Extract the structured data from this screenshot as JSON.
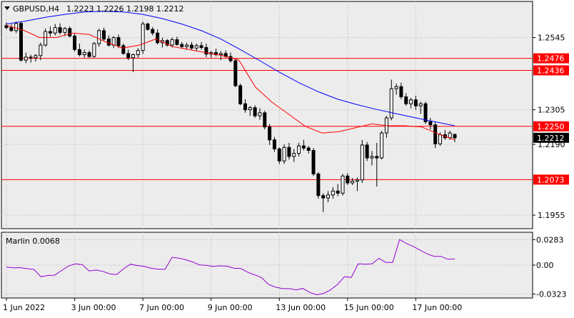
{
  "header": {
    "symbol_timeframe": "GBPUSD,H4",
    "ohlc": "1.2223 1.2226 1.2198 1.2212"
  },
  "price_axis": {
    "ticks": [
      1.2545,
      1.2305,
      1.219,
      1.1955
    ],
    "tick_labels": [
      "1.2545",
      "1.2305",
      "1.2190",
      "1.1955"
    ]
  },
  "levels": [
    {
      "price": 1.2476,
      "label": "1.2476"
    },
    {
      "price": 1.2436,
      "label": "1.2436"
    },
    {
      "price": 1.225,
      "label": "1.2250"
    },
    {
      "price": 1.2073,
      "label": "1.2073"
    }
  ],
  "current_price": {
    "price": 1.2212,
    "label": "1.2212"
  },
  "indicator": {
    "label": "Marlin 0.0068",
    "ticks": [
      0.0283,
      0.0,
      -0.0323
    ],
    "tick_labels": [
      "0.0283",
      "0.00",
      "-0.0323"
    ]
  },
  "time_axis": {
    "labels": [
      "1 Jun 2022",
      "3 Jun 00:00",
      "7 Jun 00:00",
      "9 Jun 00:00",
      "13 Jun 00:00",
      "15 Jun 00:00",
      "17 Jun 00:00"
    ]
  },
  "colors": {
    "background": "#ffffff",
    "plot_background": "#ececec",
    "grid": "#c8c8c8",
    "level_line": "#ff0000",
    "level_label_bg": "#ff0000",
    "current_label_bg": "#000000",
    "ma_slow": "#0000ff",
    "ma_fast": "#ff0000",
    "indicator_line": "#9400d3",
    "bull_candle": "#ffffff",
    "bear_candle": "#000000"
  },
  "chart_data": [
    {
      "type": "candlestick",
      "title": "GBPUSD,H4",
      "ylim": [
        1.191,
        1.2665
      ],
      "candles": [
        [
          1.2585,
          1.2595,
          1.2572,
          1.2578
        ],
        [
          1.2578,
          1.259,
          1.2565,
          1.2568
        ],
        [
          1.2568,
          1.2598,
          1.256,
          1.2592
        ],
        [
          1.2592,
          1.2598,
          1.2465,
          1.247
        ],
        [
          1.247,
          1.2495,
          1.246,
          1.248
        ],
        [
          1.248,
          1.2488,
          1.2462,
          1.2478
        ],
        [
          1.2478,
          1.249,
          1.2465,
          1.2485
        ],
        [
          1.2485,
          1.2528,
          1.247,
          1.252
        ],
        [
          1.252,
          1.2575,
          1.2515,
          1.2565
        ],
        [
          1.2565,
          1.2582,
          1.2548,
          1.256
        ],
        [
          1.256,
          1.259,
          1.2552,
          1.2578
        ],
        [
          1.2578,
          1.2592,
          1.2555,
          1.2562
        ],
        [
          1.2562,
          1.258,
          1.255,
          1.2575
        ],
        [
          1.2575,
          1.2582,
          1.2545,
          1.255
        ],
        [
          1.255,
          1.256,
          1.2498,
          1.2505
        ],
        [
          1.2505,
          1.2525,
          1.2482,
          1.2488
        ],
        [
          1.2488,
          1.2505,
          1.2478,
          1.2495
        ],
        [
          1.2495,
          1.2502,
          1.2478,
          1.2482
        ],
        [
          1.2482,
          1.253,
          1.2478,
          1.2525
        ],
        [
          1.2525,
          1.2575,
          1.2515,
          1.2568
        ],
        [
          1.2568,
          1.2578,
          1.2535,
          1.254
        ],
        [
          1.254,
          1.2552,
          1.2515,
          1.252
        ],
        [
          1.252,
          1.255,
          1.251,
          1.2545
        ],
        [
          1.2545,
          1.2555,
          1.251,
          1.2518
        ],
        [
          1.2518,
          1.2525,
          1.2488,
          1.2492
        ],
        [
          1.2492,
          1.2505,
          1.247,
          1.2478
        ],
        [
          1.2478,
          1.2492,
          1.243,
          1.2488
        ],
        [
          1.2488,
          1.251,
          1.2478,
          1.2502
        ],
        [
          1.2502,
          1.2598,
          1.249,
          1.259
        ],
        [
          1.259,
          1.2595,
          1.2568,
          1.2572
        ],
        [
          1.2572,
          1.258,
          1.2552,
          1.256
        ],
        [
          1.256,
          1.2572,
          1.2522,
          1.2528
        ],
        [
          1.2528,
          1.2545,
          1.2512,
          1.2535
        ],
        [
          1.2535,
          1.254,
          1.2515,
          1.252
        ],
        [
          1.252,
          1.2545,
          1.2512,
          1.2538
        ],
        [
          1.2538,
          1.2548,
          1.2518,
          1.2522
        ],
        [
          1.2522,
          1.253,
          1.2508,
          1.2515
        ],
        [
          1.2515,
          1.2528,
          1.2505,
          1.252
        ],
        [
          1.252,
          1.253,
          1.2505,
          1.251
        ],
        [
          1.251,
          1.2525,
          1.25,
          1.2518
        ],
        [
          1.2518,
          1.253,
          1.2505,
          1.2512
        ],
        [
          1.2512,
          1.2525,
          1.248,
          1.249
        ],
        [
          1.249,
          1.25,
          1.2478,
          1.2495
        ],
        [
          1.2495,
          1.2508,
          1.2482,
          1.2488
        ],
        [
          1.2488,
          1.25,
          1.247,
          1.2492
        ],
        [
          1.2492,
          1.2502,
          1.2478,
          1.2482
        ],
        [
          1.2482,
          1.2495,
          1.2462,
          1.2468
        ],
        [
          1.2468,
          1.2472,
          1.238,
          1.2385
        ],
        [
          1.2385,
          1.2392,
          1.232,
          1.2325
        ],
        [
          1.2325,
          1.234,
          1.2295,
          1.2305
        ],
        [
          1.2305,
          1.2318,
          1.2285,
          1.2312
        ],
        [
          1.2312,
          1.232,
          1.2278,
          1.2285
        ],
        [
          1.2285,
          1.231,
          1.2272,
          1.2295
        ],
        [
          1.2295,
          1.2302,
          1.224,
          1.2248
        ],
        [
          1.2248,
          1.2258,
          1.2188,
          1.2205
        ],
        [
          1.2205,
          1.2215,
          1.2165,
          1.2175
        ],
        [
          1.2175,
          1.218,
          1.2125,
          1.2135
        ],
        [
          1.2135,
          1.219,
          1.2125,
          1.218
        ],
        [
          1.218,
          1.2195,
          1.214,
          1.215
        ],
        [
          1.215,
          1.2175,
          1.2132,
          1.216
        ],
        [
          1.216,
          1.2195,
          1.215,
          1.2185
        ],
        [
          1.2185,
          1.2205,
          1.217,
          1.2178
        ],
        [
          1.2178,
          1.2185,
          1.216,
          1.217
        ],
        [
          1.217,
          1.2178,
          1.2085,
          1.2092
        ],
        [
          1.2092,
          1.2098,
          1.201,
          1.202
        ],
        [
          1.202,
          1.2028,
          1.1965,
          1.2012
        ],
        [
          1.2012,
          1.2035,
          1.1998,
          1.2022
        ],
        [
          1.2022,
          1.2048,
          1.201,
          1.2035
        ],
        [
          1.2035,
          1.2058,
          1.2018,
          1.2028
        ],
        [
          1.2028,
          1.2092,
          1.202,
          1.2085
        ],
        [
          1.2085,
          1.2095,
          1.2055,
          1.2062
        ],
        [
          1.2062,
          1.2078,
          1.2055,
          1.2068
        ],
        [
          1.2068,
          1.208,
          1.2035,
          1.2072
        ],
        [
          1.2072,
          1.2205,
          1.2062,
          1.2188
        ],
        [
          1.2188,
          1.2198,
          1.2135,
          1.2145
        ],
        [
          1.2145,
          1.2168,
          1.212,
          1.215
        ],
        [
          1.215,
          1.2195,
          1.205,
          1.2145
        ],
        [
          1.2145,
          1.2235,
          1.214,
          1.2228
        ],
        [
          1.2228,
          1.2285,
          1.2212,
          1.2278
        ],
        [
          1.2278,
          1.2405,
          1.227,
          1.2375
        ],
        [
          1.2375,
          1.2392,
          1.2355,
          1.2382
        ],
        [
          1.2382,
          1.2395,
          1.234,
          1.2348
        ],
        [
          1.2348,
          1.236,
          1.2318,
          1.2325
        ],
        [
          1.2325,
          1.2345,
          1.231,
          1.2338
        ],
        [
          1.2338,
          1.2352,
          1.2305,
          1.2318
        ],
        [
          1.2318,
          1.2332,
          1.2292,
          1.2325
        ],
        [
          1.2325,
          1.2332,
          1.2258,
          1.2265
        ],
        [
          1.2265,
          1.2278,
          1.224,
          1.2255
        ],
        [
          1.2255,
          1.2265,
          1.2178,
          1.2192
        ],
        [
          1.2192,
          1.223,
          1.2185,
          1.2222
        ],
        [
          1.2222,
          1.2238,
          1.2205,
          1.2212
        ],
        [
          1.2212,
          1.2235,
          1.2205,
          1.2228
        ],
        [
          1.2223,
          1.2226,
          1.2198,
          1.2212
        ]
      ],
      "series": [
        {
          "values": [
            1.259,
            1.26,
            1.2612,
            1.2622,
            1.263,
            1.2632,
            1.263,
            1.2622,
            1.2608,
            1.259,
            1.2568,
            1.254,
            1.2505,
            1.2468,
            1.243,
            1.2395,
            1.2365,
            1.234,
            1.2322,
            1.2306,
            1.2292,
            1.2278,
            1.2265,
            1.2252
          ]
        },
        {
          "values": [
            1.2585,
            1.257,
            1.2545,
            1.2545,
            1.256,
            1.2555,
            1.253,
            1.251,
            1.252,
            1.254,
            1.2515,
            1.2505,
            1.2495,
            1.2485,
            1.247,
            1.238,
            1.233,
            1.229,
            1.225,
            1.2228,
            1.2232,
            1.2245,
            1.2258,
            1.2252,
            1.2252,
            1.2248,
            1.2225,
            1.2205
          ]
        }
      ]
    },
    {
      "type": "line",
      "title": "Marlin 0.0068",
      "ylim": [
        -0.0366,
        0.0366
      ],
      "series": [
        {
          "values": [
            -0.0022,
            -0.003,
            -0.0028,
            -0.004,
            -0.0048,
            -0.013,
            -0.0115,
            -0.0112,
            -0.006,
            -0.001,
            0.0015,
            0.0005,
            -0.0065,
            -0.0055,
            -0.007,
            -0.0098,
            -0.0105,
            -0.004,
            0.001,
            -0.0005,
            -0.0015,
            -0.0035,
            -0.0045,
            -0.0045,
            0.0085,
            0.0078,
            0.006,
            0.0035,
            0.0002,
            -0.0002,
            -0.0015,
            -0.0008,
            -0.0012,
            -0.0035,
            -0.0038,
            -0.008,
            -0.0108,
            -0.014,
            -0.0215,
            -0.0245,
            -0.0262,
            -0.0262,
            -0.0275,
            -0.026,
            -0.0305,
            -0.033,
            -0.0315,
            -0.0275,
            -0.0215,
            -0.013,
            -0.0138,
            0.0015,
            0.001,
            0.0015,
            0.0075,
            0.003,
            0.003,
            0.0285,
            0.024,
            0.0208,
            0.0165,
            0.0125,
            0.0098,
            0.0098,
            0.0065,
            0.0068
          ]
        }
      ]
    }
  ]
}
